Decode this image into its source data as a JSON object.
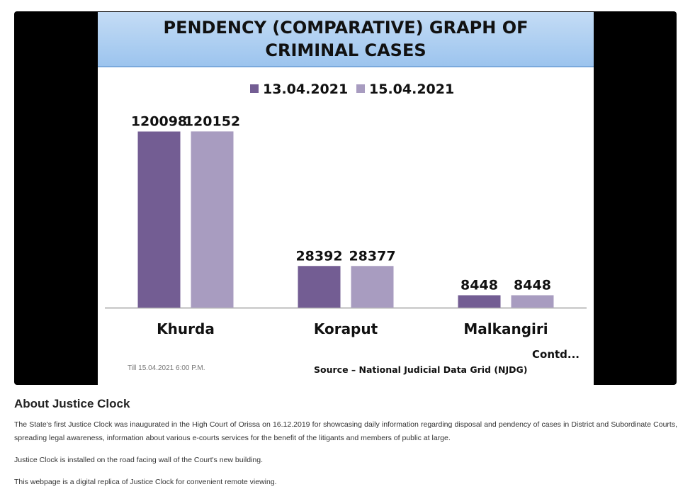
{
  "chart_data": {
    "type": "bar",
    "title": "PENDENCY (COMPARATIVE) GRAPH OF CRIMINAL CASES",
    "categories": [
      "Khurda",
      "Koraput",
      "Malkangiri"
    ],
    "series": [
      {
        "name": "13.04.2021",
        "color": "#735d93",
        "values": [
          120098,
          28392,
          8448
        ]
      },
      {
        "name": "15.04.2021",
        "color": "#a89cc0",
        "values": [
          120152,
          28377,
          8448
        ]
      }
    ],
    "legend_position": "top-center",
    "grid": false,
    "ylim": [
      0,
      145000
    ],
    "footnote": "Till 15.04.2021 6:00 P.M.",
    "contd": "Contd...",
    "source": "Source – National Judicial Data Grid (NJDG)"
  },
  "about": {
    "heading": "About Justice Clock",
    "paragraphs": [
      "The State's first Justice Clock was inaugurated in the High Court of Orissa on 16.12.2019 for showcasing daily information regarding disposal and pendency of cases in District and Subordinate Courts, spreading legal awareness, information about various e-courts services for the benefit of the litigants and members of public at large.",
      "Justice Clock is installed on the road facing wall of the Court's new building.",
      "This webpage is a digital replica of Justice Clock for convenient remote viewing."
    ]
  }
}
